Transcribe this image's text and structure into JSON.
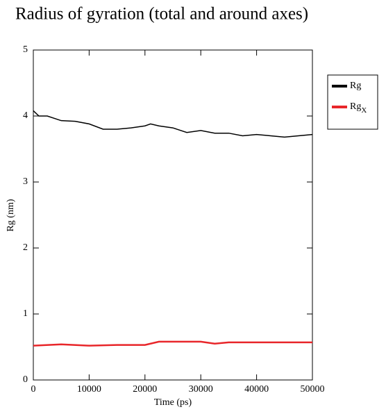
{
  "chart_data": {
    "type": "line",
    "title": "Radius of gyration (total and around axes)",
    "xlabel": "Time (ps)",
    "ylabel": "Rg (nm)",
    "xlim": [
      0,
      50000
    ],
    "ylim": [
      0,
      5
    ],
    "xticks": [
      0,
      10000,
      20000,
      30000,
      40000,
      50000
    ],
    "yticks": [
      0,
      1,
      2,
      3,
      4,
      5
    ],
    "legend": "right",
    "series": [
      {
        "name": "Rg",
        "color": "#000000",
        "x": [
          0,
          1000,
          2500,
          5000,
          7500,
          10000,
          12500,
          15000,
          17500,
          20000,
          21000,
          22500,
          25000,
          27500,
          30000,
          32500,
          35000,
          37500,
          40000,
          42500,
          45000,
          47500,
          50000
        ],
        "values": [
          4.08,
          4.0,
          4.0,
          3.93,
          3.92,
          3.88,
          3.8,
          3.8,
          3.82,
          3.85,
          3.88,
          3.85,
          3.82,
          3.75,
          3.78,
          3.74,
          3.74,
          3.7,
          3.72,
          3.7,
          3.68,
          3.7,
          3.72
        ]
      },
      {
        "name": "Rg",
        "name_subscript": "X",
        "color": "#e8262a",
        "x": [
          0,
          5000,
          10000,
          15000,
          20000,
          22500,
          25000,
          30000,
          32500,
          35000,
          40000,
          45000,
          50000
        ],
        "values": [
          0.52,
          0.54,
          0.52,
          0.53,
          0.53,
          0.58,
          0.58,
          0.58,
          0.55,
          0.57,
          0.57,
          0.57,
          0.57
        ]
      }
    ]
  }
}
